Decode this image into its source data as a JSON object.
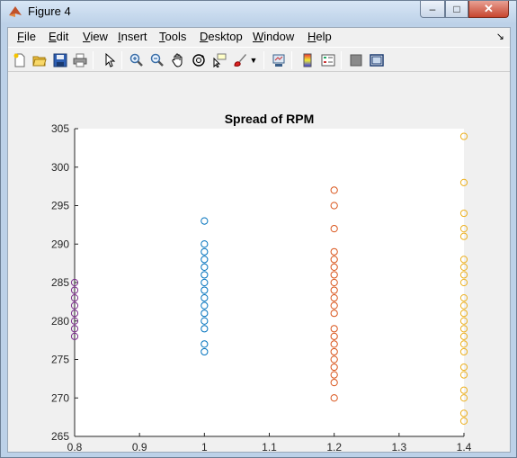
{
  "window": {
    "title": "Figure 4",
    "min_glyph": "–",
    "max_glyph": "□",
    "close_glyph": "✕"
  },
  "menu": {
    "items": [
      {
        "label": "File"
      },
      {
        "label": "Edit"
      },
      {
        "label": "View"
      },
      {
        "label": "Insert"
      },
      {
        "label": "Tools"
      },
      {
        "label": "Desktop"
      },
      {
        "label": "Window"
      },
      {
        "label": "Help"
      }
    ],
    "dock_arrow": "↘"
  },
  "toolbar": {
    "icons": [
      "new-figure-icon",
      "open-file-icon",
      "save-icon",
      "print-icon",
      "edit-plot-arrow-icon",
      "zoom-in-icon",
      "zoom-out-icon",
      "pan-hand-icon",
      "rotate-3d-icon",
      "data-cursor-icon",
      "brush-icon",
      "brush-dropdown-icon",
      "link-plot-icon",
      "insert-colorbar-icon",
      "insert-legend-icon",
      "hide-plot-tools-icon",
      "show-plot-tools-icon"
    ]
  },
  "chart_data": {
    "type": "scatter",
    "title": "Spread of RPM",
    "xlabel": "",
    "ylabel": "",
    "xlim": [
      0.8,
      1.4
    ],
    "ylim": [
      265,
      305
    ],
    "xticks": [
      "0.8",
      "0.9",
      "1",
      "1.1",
      "1.2",
      "1.3",
      "1.4"
    ],
    "yticks": [
      "265",
      "270",
      "275",
      "280",
      "285",
      "290",
      "295",
      "300",
      "305"
    ],
    "grid": false,
    "series": [
      {
        "color": "#7e2f8e",
        "x": 0.8,
        "y": [
          285,
          284,
          283,
          282,
          281,
          280,
          279,
          278
        ]
      },
      {
        "color": "#0072bd",
        "x": 1.0,
        "y": [
          293,
          290,
          289,
          288,
          287,
          286,
          285,
          284,
          283,
          282,
          281,
          280,
          279,
          277,
          276
        ]
      },
      {
        "color": "#d95319",
        "x": 1.2,
        "y": [
          297,
          295,
          292,
          289,
          288,
          287,
          286,
          285,
          284,
          283,
          282,
          281,
          279,
          278,
          277,
          276,
          275,
          274,
          273,
          272,
          270
        ]
      },
      {
        "color": "#edb120",
        "x": 1.4,
        "y": [
          304,
          298,
          294,
          292,
          291,
          288,
          287,
          286,
          285,
          283,
          282,
          281,
          280,
          279,
          278,
          277,
          276,
          274,
          273,
          271,
          270,
          268,
          267
        ]
      }
    ]
  }
}
